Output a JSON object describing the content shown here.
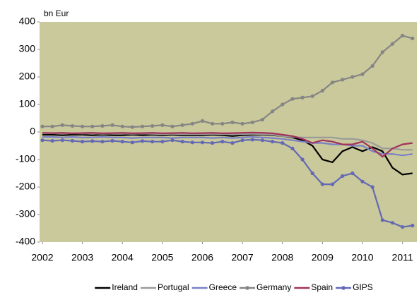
{
  "chart_data": {
    "type": "line",
    "y_label": "bn Eur",
    "x": [
      2002,
      2002.25,
      2002.5,
      2002.75,
      2003,
      2003.25,
      2003.5,
      2003.75,
      2004,
      2004.25,
      2004.5,
      2004.75,
      2005,
      2005.25,
      2005.5,
      2005.75,
      2006,
      2006.25,
      2006.5,
      2006.75,
      2007,
      2007.25,
      2007.5,
      2007.75,
      2008,
      2008.25,
      2008.5,
      2008.75,
      2009,
      2009.25,
      2009.5,
      2009.75,
      2010,
      2010.25,
      2010.5,
      2010.75,
      2011,
      2011.25
    ],
    "xlim": [
      2001.93,
      2011.36
    ],
    "xticks": [
      2002,
      2003,
      2004,
      2005,
      2006,
      2007,
      2008,
      2009,
      2010,
      2011
    ],
    "ylim": [
      -400,
      400
    ],
    "yticks": [
      -400,
      -300,
      -200,
      -100,
      0,
      100,
      200,
      300,
      400
    ],
    "background": "#c9c99b",
    "series": [
      {
        "name": "Ireland",
        "color": "#000000",
        "marker": false,
        "values": [
          -10,
          -10,
          -12,
          -10,
          -10,
          -12,
          -10,
          -12,
          -12,
          -10,
          -12,
          -10,
          -12,
          -10,
          -12,
          -12,
          -12,
          -10,
          -12,
          -15,
          -12,
          -10,
          -10,
          -12,
          -15,
          -20,
          -30,
          -50,
          -100,
          -110,
          -70,
          -55,
          -70,
          -55,
          -70,
          -130,
          -155,
          -150
        ]
      },
      {
        "name": "Portugal",
        "color": "#9a9a9a",
        "marker": false,
        "values": [
          -5,
          -5,
          -6,
          -5,
          -6,
          -5,
          -7,
          -6,
          -6,
          -7,
          -6,
          -7,
          -8,
          -7,
          -8,
          -8,
          -8,
          -7,
          -8,
          -8,
          -8,
          -7,
          -8,
          -10,
          -15,
          -18,
          -20,
          -20,
          -20,
          -20,
          -25,
          -25,
          -30,
          -40,
          -60,
          -60,
          -65,
          -65
        ]
      },
      {
        "name": "Greece",
        "color": "#7a80c4",
        "marker": false,
        "values": [
          -18,
          -18,
          -20,
          -18,
          -20,
          -20,
          -18,
          -20,
          -20,
          -22,
          -20,
          -20,
          -20,
          -22,
          -20,
          -20,
          -20,
          -22,
          -20,
          -22,
          -20,
          -18,
          -20,
          -22,
          -25,
          -30,
          -35,
          -40,
          -40,
          -45,
          -45,
          -50,
          -50,
          -70,
          -80,
          -80,
          -85,
          -80
        ]
      },
      {
        "name": "Germany",
        "color": "#858585",
        "marker": true,
        "values": [
          20,
          20,
          25,
          22,
          20,
          20,
          22,
          25,
          20,
          18,
          20,
          22,
          25,
          20,
          25,
          30,
          40,
          30,
          30,
          35,
          30,
          35,
          45,
          75,
          100,
          120,
          125,
          130,
          150,
          180,
          190,
          200,
          210,
          240,
          290,
          320,
          350,
          340
        ]
      },
      {
        "name": "Spain",
        "color": "#a3335c",
        "marker": false,
        "values": [
          -3,
          -4,
          -3,
          -5,
          -4,
          -3,
          -5,
          -4,
          -3,
          -5,
          -4,
          -3,
          -5,
          -4,
          -3,
          -5,
          -4,
          -3,
          -5,
          -4,
          -3,
          -2,
          -3,
          -5,
          -10,
          -15,
          -25,
          -40,
          -30,
          -35,
          -45,
          -45,
          -35,
          -60,
          -90,
          -60,
          -45,
          -40
        ]
      },
      {
        "name": "GIPS",
        "color": "#6469b5",
        "marker": true,
        "values": [
          -30,
          -32,
          -30,
          -32,
          -35,
          -33,
          -35,
          -32,
          -35,
          -38,
          -33,
          -35,
          -35,
          -30,
          -35,
          -38,
          -38,
          -40,
          -35,
          -40,
          -30,
          -28,
          -30,
          -35,
          -40,
          -60,
          -100,
          -150,
          -190,
          -190,
          -160,
          -150,
          -180,
          -200,
          -320,
          -330,
          -345,
          -340
        ]
      }
    ]
  }
}
